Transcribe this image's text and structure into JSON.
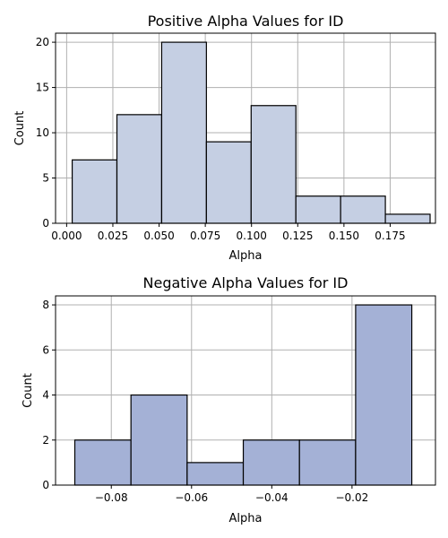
{
  "chart_data": [
    {
      "type": "bar",
      "title": "Positive Alpha Values for ID",
      "xlabel": "Alpha",
      "ylabel": "Count",
      "bar_color": "#c5cfe3",
      "bin_edges": [
        0.003,
        0.0272,
        0.0514,
        0.0756,
        0.0998,
        0.124,
        0.1482,
        0.1724,
        0.1966
      ],
      "values": [
        7,
        12,
        20,
        9,
        13,
        3,
        3,
        1
      ],
      "xlim": [
        -0.006,
        0.1995
      ],
      "ylim": [
        0,
        21
      ],
      "xticks": [
        0.0,
        0.025,
        0.05,
        0.075,
        0.1,
        0.125,
        0.15,
        0.175
      ],
      "xtick_labels": [
        "0.000",
        "0.025",
        "0.050",
        "0.075",
        "0.100",
        "0.125",
        "0.150",
        "0.175"
      ],
      "yticks": [
        0,
        5,
        10,
        15,
        20
      ],
      "ytick_labels": [
        "0",
        "5",
        "10",
        "15",
        "20"
      ],
      "grid": true
    },
    {
      "type": "bar",
      "title": "Negative Alpha Values for ID",
      "xlabel": "Alpha",
      "ylabel": "Count",
      "bar_color": "#a4b1d6",
      "bin_edges": [
        -0.0891,
        -0.0751,
        -0.0611,
        -0.0471,
        -0.0331,
        -0.0191,
        -0.0051
      ],
      "values": [
        2,
        4,
        1,
        2,
        2,
        8
      ],
      "xlim": [
        -0.0939,
        0.0008
      ],
      "ylim": [
        0,
        8.4
      ],
      "xticks": [
        -0.08,
        -0.06,
        -0.04,
        -0.02
      ],
      "xtick_labels": [
        "−0.08",
        "−0.06",
        "−0.04",
        "−0.02"
      ],
      "yticks": [
        0,
        2,
        4,
        6,
        8
      ],
      "ytick_labels": [
        "0",
        "2",
        "4",
        "6",
        "8"
      ],
      "grid": true
    }
  ]
}
